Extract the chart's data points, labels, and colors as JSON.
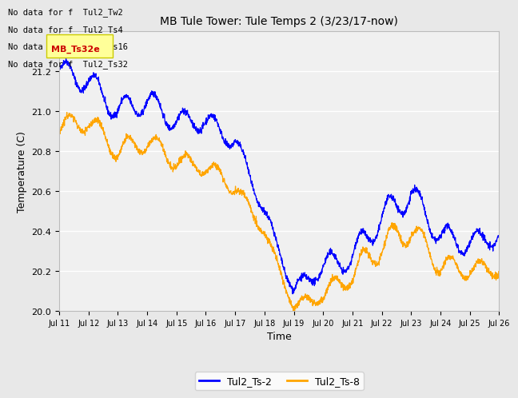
{
  "title": "MB Tule Tower: Tule Temps 2 (3/23/17-now)",
  "xlabel": "Time",
  "ylabel": "Temperature (C)",
  "ylim": [
    20.0,
    21.4
  ],
  "yticks": [
    20.0,
    20.2,
    20.4,
    20.6,
    20.8,
    21.0,
    21.2
  ],
  "xtick_labels": [
    "Jul 11",
    "Jul 12",
    "Jul 13",
    "Jul 14",
    "Jul 15",
    "Jul 16",
    "Jul 17",
    "Jul 18",
    "Jul 19",
    "Jul 20",
    "Jul 21",
    "Jul 22",
    "Jul 23",
    "Jul 24",
    "Jul 25",
    "Jul 26"
  ],
  "no_data_texts": [
    "No data for f  Tul2_Tw2",
    "No data for f  Tul2_Ts4",
    "No data for f  Tul2_Ts16",
    "No data for f  Tul2_Ts32"
  ],
  "legend_entries": [
    "Tul2_Ts-2",
    "Tul2_Ts-8"
  ],
  "line_colors": [
    "#0000ff",
    "#ffa500"
  ],
  "bg_color": "#e8e8e8",
  "plot_bg_color": "#f0f0f0",
  "grid_color": "#ffffff",
  "annotation_box_color": "#ffff99",
  "annotation_text_color": "#cc0000",
  "tooltip_text": "MB_Ts32e"
}
